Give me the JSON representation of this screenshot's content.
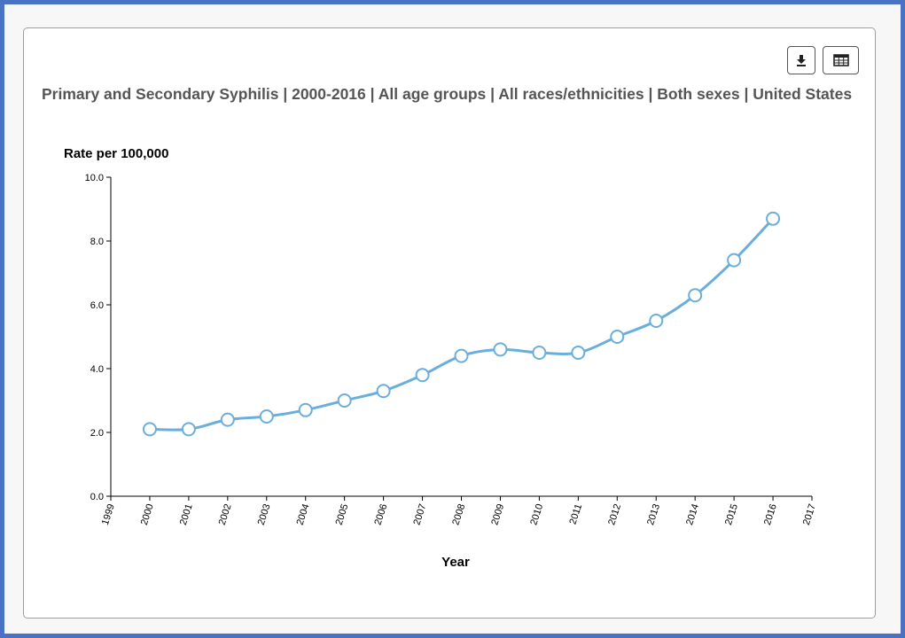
{
  "toolbar": {
    "download_icon": "download-icon",
    "table_icon": "table-icon"
  },
  "chart_data": {
    "type": "line",
    "title": "Primary and Secondary Syphilis | 2000-2016 | All age groups | All races/ethnicities | Both sexes | United States",
    "xlabel": "Year",
    "ylabel": "Rate per 100,000",
    "x_ticks": [
      "1999",
      "2000",
      "2001",
      "2002",
      "2003",
      "2004",
      "2005",
      "2006",
      "2007",
      "2008",
      "2009",
      "2010",
      "2011",
      "2012",
      "2013",
      "2014",
      "2015",
      "2016",
      "2017"
    ],
    "y_ticks": [
      "0.0",
      "2.0",
      "4.0",
      "6.0",
      "8.0",
      "10.0"
    ],
    "xlim": [
      1999,
      2017
    ],
    "ylim": [
      0,
      10
    ],
    "grid": false,
    "series": [
      {
        "x": [
          2000,
          2001,
          2002,
          2003,
          2004,
          2005,
          2006,
          2007,
          2008,
          2009,
          2010,
          2011,
          2012,
          2013,
          2014,
          2015,
          2016
        ],
        "values": [
          2.1,
          2.1,
          2.4,
          2.5,
          2.7,
          3.0,
          3.3,
          3.8,
          4.4,
          4.6,
          4.5,
          4.5,
          5.0,
          5.5,
          6.3,
          7.4,
          8.7
        ]
      }
    ],
    "line_color": "#6aaedc",
    "axis_color": "#000000"
  }
}
